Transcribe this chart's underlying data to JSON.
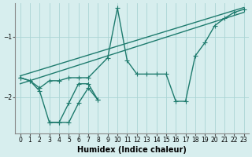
{
  "xlabel": "Humidex (Indice chaleur)",
  "bg_color": "#d7eeee",
  "grid_color": "#aad4d4",
  "line_color": "#1e7b6e",
  "xlim": [
    -0.5,
    23.5
  ],
  "ylim": [
    -2.6,
    -0.45
  ],
  "yticks": [
    -2.0,
    -1.0
  ],
  "xticks": [
    0,
    1,
    2,
    3,
    4,
    5,
    6,
    7,
    8,
    9,
    10,
    11,
    12,
    13,
    14,
    15,
    16,
    17,
    18,
    19,
    20,
    21,
    22,
    23
  ],
  "series1_x": [
    0,
    1,
    2,
    3,
    4,
    5,
    6,
    7,
    9,
    10,
    11,
    12,
    13,
    14,
    15,
    16,
    17,
    18,
    19,
    20,
    21,
    22,
    23
  ],
  "series1_y": [
    -1.68,
    -1.73,
    -1.85,
    -1.73,
    -1.73,
    -1.68,
    -1.68,
    -1.68,
    -1.35,
    -0.53,
    -1.4,
    -1.62,
    -1.62,
    -1.62,
    -1.62,
    -2.07,
    -2.07,
    -1.32,
    -1.1,
    -0.82,
    -0.7,
    -0.6,
    -0.55
  ],
  "series2_x": [
    0,
    1,
    2,
    3,
    4,
    5,
    6,
    7,
    8
  ],
  "series2_y": [
    -1.68,
    -1.73,
    -1.9,
    -2.42,
    -2.42,
    -2.1,
    -1.78,
    -1.78,
    -2.05
  ],
  "series3_x": [
    3,
    4,
    5,
    6,
    7,
    8
  ],
  "series3_y": [
    -2.42,
    -2.42,
    -2.42,
    -2.1,
    -1.85,
    -2.05
  ],
  "trend1_x": [
    0,
    23
  ],
  "trend1_y": [
    -1.78,
    -0.6
  ],
  "trend2_x": [
    0,
    23
  ],
  "trend2_y": [
    -1.65,
    -0.52
  ],
  "marker": "+",
  "markersize": 4,
  "linewidth": 1.0,
  "tick_fontsize": 5.5,
  "xlabel_fontsize": 7
}
